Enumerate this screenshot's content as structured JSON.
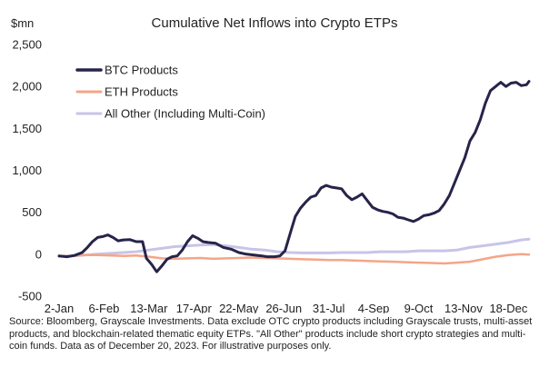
{
  "chart_data": {
    "type": "line",
    "title": "Cumulative Net Inflows into Crypto ETPs",
    "ylabel": "$mn",
    "xlabel": "",
    "ylim": [
      -500,
      2500
    ],
    "yticks": [
      -500,
      0,
      500,
      1000,
      1500,
      2000,
      2500
    ],
    "ytick_labels": [
      "-500",
      "0",
      "500",
      "1,000",
      "1,500",
      "2,000",
      "2,500"
    ],
    "x_start": "2-Jan",
    "x_end": "20-Dec",
    "xtick_labels": [
      "2-Jan",
      "6-Feb",
      "13-Mar",
      "17-Apr",
      "22-May",
      "26-Jun",
      "31-Jul",
      "4-Sep",
      "9-Oct",
      "13-Nov",
      "18-Dec"
    ],
    "xtick_days": [
      0,
      35,
      70,
      105,
      140,
      175,
      210,
      245,
      280,
      315,
      350
    ],
    "grid": false,
    "legend_position": "top-left",
    "series": [
      {
        "name": "BTC Products",
        "color": "#27244a",
        "points": [
          [
            0,
            -20
          ],
          [
            6,
            -30
          ],
          [
            12,
            -15
          ],
          [
            18,
            20
          ],
          [
            22,
            80
          ],
          [
            26,
            150
          ],
          [
            30,
            200
          ],
          [
            34,
            210
          ],
          [
            38,
            230
          ],
          [
            42,
            200
          ],
          [
            46,
            160
          ],
          [
            50,
            170
          ],
          [
            55,
            175
          ],
          [
            60,
            150
          ],
          [
            65,
            150
          ],
          [
            68,
            -50
          ],
          [
            72,
            -120
          ],
          [
            76,
            -210
          ],
          [
            80,
            -140
          ],
          [
            84,
            -60
          ],
          [
            88,
            -30
          ],
          [
            92,
            -20
          ],
          [
            96,
            50
          ],
          [
            100,
            150
          ],
          [
            104,
            220
          ],
          [
            108,
            190
          ],
          [
            112,
            150
          ],
          [
            116,
            140
          ],
          [
            122,
            130
          ],
          [
            128,
            80
          ],
          [
            134,
            60
          ],
          [
            140,
            20
          ],
          [
            146,
            0
          ],
          [
            152,
            -10
          ],
          [
            158,
            -20
          ],
          [
            162,
            -30
          ],
          [
            168,
            -30
          ],
          [
            172,
            -20
          ],
          [
            176,
            40
          ],
          [
            180,
            250
          ],
          [
            184,
            450
          ],
          [
            188,
            550
          ],
          [
            192,
            620
          ],
          [
            196,
            680
          ],
          [
            200,
            700
          ],
          [
            204,
            790
          ],
          [
            208,
            820
          ],
          [
            212,
            800
          ],
          [
            216,
            790
          ],
          [
            220,
            780
          ],
          [
            224,
            700
          ],
          [
            228,
            650
          ],
          [
            232,
            680
          ],
          [
            236,
            720
          ],
          [
            240,
            640
          ],
          [
            244,
            560
          ],
          [
            248,
            530
          ],
          [
            252,
            510
          ],
          [
            256,
            500
          ],
          [
            260,
            480
          ],
          [
            264,
            440
          ],
          [
            268,
            430
          ],
          [
            272,
            410
          ],
          [
            276,
            390
          ],
          [
            280,
            420
          ],
          [
            284,
            460
          ],
          [
            288,
            470
          ],
          [
            292,
            490
          ],
          [
            296,
            520
          ],
          [
            300,
            600
          ],
          [
            304,
            700
          ],
          [
            308,
            850
          ],
          [
            312,
            1000
          ],
          [
            316,
            1150
          ],
          [
            320,
            1350
          ],
          [
            324,
            1450
          ],
          [
            328,
            1600
          ],
          [
            332,
            1800
          ],
          [
            336,
            1950
          ],
          [
            340,
            2000
          ],
          [
            344,
            2050
          ],
          [
            348,
            2000
          ],
          [
            352,
            2040
          ],
          [
            356,
            2050
          ],
          [
            360,
            2010
          ],
          [
            364,
            2020
          ],
          [
            366,
            2060
          ]
        ]
      },
      {
        "name": "ETH Products",
        "color": "#f4a588",
        "points": [
          [
            0,
            -25
          ],
          [
            10,
            -20
          ],
          [
            20,
            -10
          ],
          [
            30,
            -10
          ],
          [
            40,
            -15
          ],
          [
            50,
            -20
          ],
          [
            60,
            -15
          ],
          [
            70,
            -30
          ],
          [
            80,
            -50
          ],
          [
            90,
            -55
          ],
          [
            100,
            -50
          ],
          [
            110,
            -45
          ],
          [
            120,
            -55
          ],
          [
            130,
            -50
          ],
          [
            140,
            -45
          ],
          [
            150,
            -40
          ],
          [
            160,
            -45
          ],
          [
            170,
            -50
          ],
          [
            180,
            -55
          ],
          [
            190,
            -60
          ],
          [
            200,
            -65
          ],
          [
            210,
            -70
          ],
          [
            220,
            -70
          ],
          [
            230,
            -75
          ],
          [
            240,
            -80
          ],
          [
            250,
            -85
          ],
          [
            260,
            -90
          ],
          [
            270,
            -95
          ],
          [
            280,
            -100
          ],
          [
            290,
            -105
          ],
          [
            300,
            -110
          ],
          [
            310,
            -100
          ],
          [
            320,
            -90
          ],
          [
            330,
            -60
          ],
          [
            340,
            -30
          ],
          [
            350,
            -10
          ],
          [
            360,
            0
          ],
          [
            366,
            -5
          ]
        ]
      },
      {
        "name": "All Other (Including Multi-Coin)",
        "color": "#c8c4e8",
        "points": [
          [
            0,
            -25
          ],
          [
            10,
            -20
          ],
          [
            20,
            -10
          ],
          [
            30,
            0
          ],
          [
            40,
            10
          ],
          [
            50,
            20
          ],
          [
            60,
            30
          ],
          [
            70,
            50
          ],
          [
            80,
            70
          ],
          [
            90,
            90
          ],
          [
            100,
            100
          ],
          [
            110,
            110
          ],
          [
            120,
            115
          ],
          [
            130,
            100
          ],
          [
            140,
            80
          ],
          [
            150,
            60
          ],
          [
            160,
            50
          ],
          [
            170,
            30
          ],
          [
            180,
            20
          ],
          [
            190,
            15
          ],
          [
            200,
            15
          ],
          [
            210,
            15
          ],
          [
            220,
            20
          ],
          [
            230,
            20
          ],
          [
            240,
            20
          ],
          [
            250,
            30
          ],
          [
            260,
            30
          ],
          [
            270,
            30
          ],
          [
            280,
            40
          ],
          [
            290,
            40
          ],
          [
            300,
            40
          ],
          [
            310,
            50
          ],
          [
            320,
            80
          ],
          [
            330,
            100
          ],
          [
            340,
            120
          ],
          [
            350,
            140
          ],
          [
            360,
            170
          ],
          [
            366,
            180
          ]
        ]
      }
    ],
    "source": "Source: Bloomberg, Grayscale Investments. Data exclude OTC crypto products including Grayscale trusts, multi-asset products, and blockchain-related thematic equity ETPs. \"All Other\" products include short crypto strategies and multi-coin funds. Data as of December 20, 2023. For illustrative purposes only."
  }
}
